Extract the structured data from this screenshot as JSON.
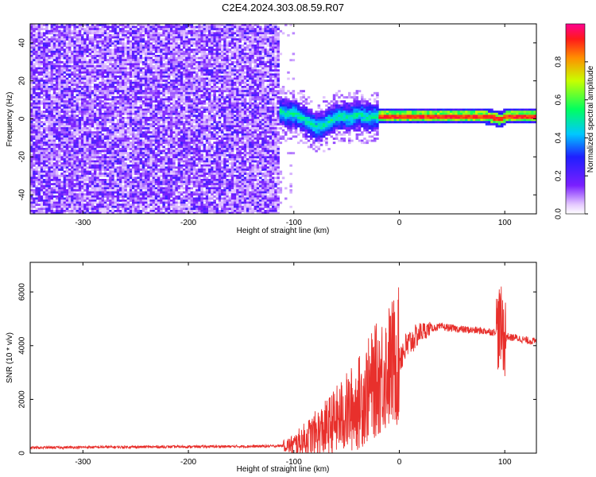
{
  "title": "C2E4.2024.303.08.59.R07",
  "chart_data": [
    {
      "type": "heatmap",
      "xlabel": "Height of straight line (km)",
      "ylabel": "Frequency (Hz)",
      "xlim": [
        -350,
        130
      ],
      "ylim": [
        -50,
        50
      ],
      "xticks": [
        -300,
        -200,
        -100,
        0,
        100
      ],
      "yticks": [
        -40,
        -20,
        0,
        20,
        40
      ],
      "noise_region_x": [
        -350,
        -115
      ],
      "signal_ridge": {
        "x": [
          -130,
          -120,
          -110,
          -100,
          -90,
          -80,
          -70,
          -60,
          -50,
          -40,
          -30,
          -20,
          -10,
          0,
          20,
          40,
          60,
          80,
          90,
          95,
          100,
          110,
          120,
          130
        ],
        "frequency": [
          8,
          7,
          3,
          3,
          0,
          -4,
          -2,
          2,
          1,
          3,
          1,
          2,
          2,
          2,
          2,
          2,
          2,
          2,
          1,
          0,
          2,
          2,
          2,
          2
        ]
      },
      "colorbar": {
        "label": "Normalized spectral amplitude",
        "ticks": [
          "0.0",
          "0.2",
          "0.4",
          "0.6",
          "0.8"
        ],
        "range": [
          0,
          1
        ]
      },
      "grid": false
    },
    {
      "type": "line",
      "xlabel": "Height of straight line (km)",
      "ylabel": "SNR (10 * v/v)",
      "xlim": [
        -350,
        130
      ],
      "ylim": [
        0,
        7100
      ],
      "xticks": [
        -300,
        -200,
        -100,
        0,
        100
      ],
      "yticks": [
        0,
        2000,
        4000,
        6000
      ],
      "series": [
        {
          "color": "#e8302c",
          "x": [
            -350,
            -300,
            -250,
            -200,
            -150,
            -120,
            -100,
            -90,
            -80,
            -70,
            -60,
            -50,
            -40,
            -30,
            -20,
            -10,
            0,
            10,
            20,
            30,
            40,
            60,
            80,
            90,
            95,
            100,
            105,
            110,
            120,
            130
          ],
          "y": [
            200,
            220,
            230,
            240,
            250,
            260,
            300,
            500,
            700,
            900,
            1200,
            1500,
            1800,
            2300,
            2800,
            3200,
            3600,
            4100,
            4500,
            4650,
            4700,
            4600,
            4550,
            4500,
            4700,
            4400,
            4300,
            4300,
            4200,
            4150
          ]
        }
      ],
      "grid": false
    }
  ]
}
